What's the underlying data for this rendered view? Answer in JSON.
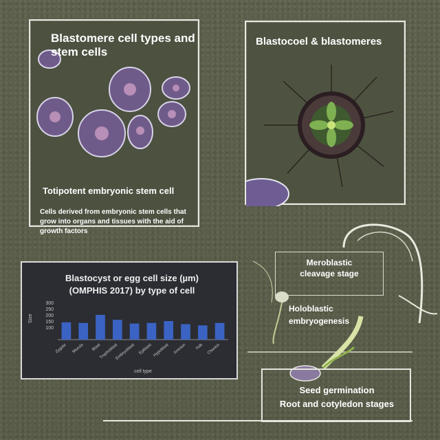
{
  "panel_cells": {
    "title": "Blastomere cell types and stem cells",
    "subtitle": "Totipotent embryonic stem cell",
    "body": "Cells derived from embryonic stem cells that grow into organs and tissues with the aid of growth factors"
  },
  "panel_rosette": {
    "title": "Blastocoel & blastomeres"
  },
  "chart_panel": {
    "title_line1": "Blastocyst or egg cell size (µm)",
    "title_line2": "(OMPHIS 2017) by type of cell",
    "ylabel": "Size",
    "xlabel": "cell type",
    "tick_labels": [
      "300",
      "250",
      "200",
      "150",
      "100"
    ]
  },
  "chart_data": {
    "type": "bar",
    "title": "Blastocyst or egg cell size (µm) (OMPHIS 2017) by type of cell",
    "categories": [
      "Zygote",
      "Morula",
      "Blast",
      "Trophoblast",
      "Embryoblast",
      "Epiblast",
      "Hypoblast",
      "Amnion",
      "Yolk",
      "Chorion"
    ],
    "values": [
      140,
      135,
      200,
      160,
      130,
      135,
      150,
      125,
      115,
      135
    ],
    "ylim": [
      0,
      300
    ],
    "ylabel": "Size",
    "xlabel": "cell type"
  },
  "right_labels": {
    "box_a_line1": "Meroblastic",
    "box_a_line2": "cleavage stage",
    "mid_line1": "Holoblastic",
    "mid_line2": "embryogenesis",
    "box_b_line1": "Seed germination",
    "box_b_line2": "Root and cotyledon stages"
  },
  "colors": {
    "background": "#5a5e4a",
    "chart_bg": "#2b2d33",
    "bar": "#3b63c4",
    "frame": "#e9e9e2"
  }
}
